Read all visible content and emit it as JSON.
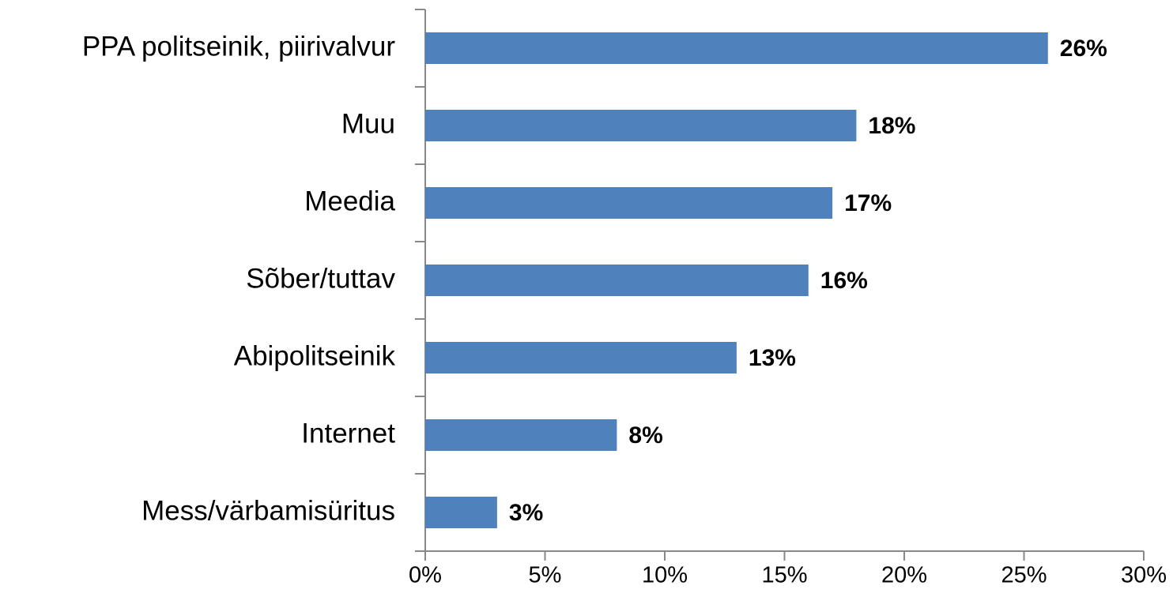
{
  "chart_data": {
    "type": "bar",
    "orientation": "horizontal",
    "categories": [
      "PPA politseinik, piirivalvur",
      "Muu",
      "Meedia",
      "Sõber/tuttav",
      "Abipolitseinik",
      "Internet",
      "Mess/värbamisüritus"
    ],
    "values": [
      26,
      18,
      17,
      16,
      13,
      8,
      3
    ],
    "value_labels": [
      "26%",
      "18%",
      "17%",
      "16%",
      "13%",
      "8%",
      "3%"
    ],
    "color": "#4f81bd",
    "xlim": [
      0,
      30
    ],
    "xticks": [
      {
        "value": 0,
        "label": "0%"
      },
      {
        "value": 5,
        "label": "5%"
      },
      {
        "value": 10,
        "label": "10%"
      },
      {
        "value": 15,
        "label": "15%"
      },
      {
        "value": 20,
        "label": "20%"
      },
      {
        "value": 25,
        "label": "25%"
      },
      {
        "value": 30,
        "label": "30%"
      }
    ],
    "grid": false
  }
}
